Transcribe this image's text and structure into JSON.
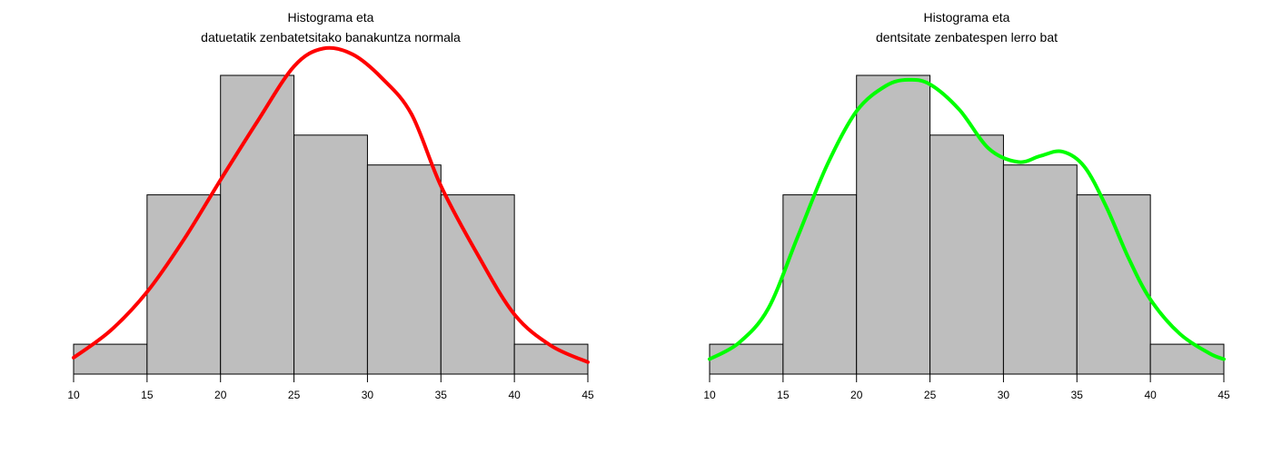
{
  "chart_data": [
    {
      "type": "bar",
      "title_lines": [
        "Histograma eta",
        "datuetatik zenbatetsitako banakuntza normala"
      ],
      "xlabel": "",
      "ylabel": "",
      "bin_edges": [
        10,
        15,
        20,
        25,
        30,
        35,
        40,
        45
      ],
      "counts": [
        1,
        6,
        10,
        8,
        7,
        6,
        1
      ],
      "xlim": [
        10,
        45
      ],
      "ylim": [
        0,
        10
      ],
      "x_ticks": [
        "10",
        "15",
        "20",
        "25",
        "30",
        "35",
        "40",
        "45"
      ],
      "bar_color": "#bebebe",
      "overlay": {
        "kind": "normal-density",
        "color": "#ff0000",
        "points": [
          [
            10,
            0.55
          ],
          [
            12.5,
            1.45
          ],
          [
            15,
            2.75
          ],
          [
            17.5,
            4.5
          ],
          [
            20,
            6.5
          ],
          [
            22.5,
            8.45
          ],
          [
            25,
            10.3
          ],
          [
            27,
            10.9
          ],
          [
            29,
            10.7
          ],
          [
            31,
            9.9
          ],
          [
            33,
            8.7
          ],
          [
            35,
            6.3
          ],
          [
            37.5,
            4.0
          ],
          [
            40,
            2.0
          ],
          [
            42.5,
            0.95
          ],
          [
            45,
            0.4
          ]
        ]
      }
    },
    {
      "type": "bar",
      "title_lines": [
        "Histograma eta",
        "dentsitate zenbatespen lerro bat"
      ],
      "xlabel": "",
      "ylabel": "",
      "bin_edges": [
        10,
        15,
        20,
        25,
        30,
        35,
        40,
        45
      ],
      "counts": [
        1,
        6,
        10,
        8,
        7,
        6,
        1
      ],
      "xlim": [
        10,
        45
      ],
      "ylim": [
        0,
        10
      ],
      "x_ticks": [
        "10",
        "15",
        "20",
        "25",
        "30",
        "35",
        "40",
        "45"
      ],
      "bar_color": "#bebebe",
      "overlay": {
        "kind": "kernel-density",
        "color": "#00ff00",
        "points": [
          [
            10,
            0.5
          ],
          [
            12,
            1.05
          ],
          [
            14,
            2.2
          ],
          [
            16,
            4.6
          ],
          [
            18,
            7.0
          ],
          [
            20,
            8.8
          ],
          [
            22,
            9.65
          ],
          [
            23.5,
            9.85
          ],
          [
            25,
            9.7
          ],
          [
            27,
            8.85
          ],
          [
            29,
            7.55
          ],
          [
            31,
            7.1
          ],
          [
            32.5,
            7.3
          ],
          [
            34,
            7.45
          ],
          [
            35.5,
            6.95
          ],
          [
            37,
            5.6
          ],
          [
            38.5,
            3.9
          ],
          [
            40,
            2.5
          ],
          [
            42,
            1.35
          ],
          [
            44,
            0.7
          ],
          [
            45,
            0.5
          ]
        ]
      }
    }
  ]
}
